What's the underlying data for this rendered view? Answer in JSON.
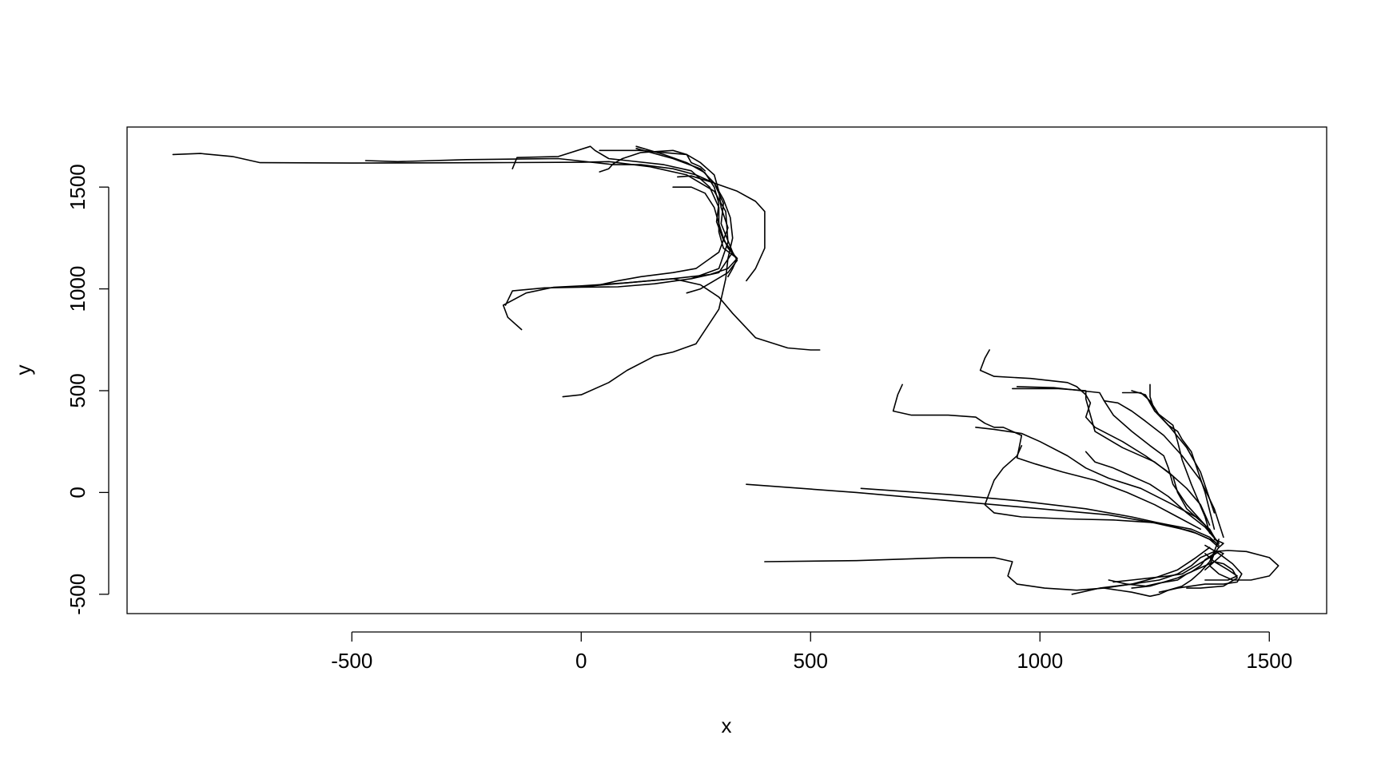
{
  "chart_data": {
    "type": "line",
    "title": "",
    "xlabel": "x",
    "ylabel": "y",
    "xlim": [
      -990,
      1625
    ],
    "ylim": [
      -595,
      1795
    ],
    "xticks": [
      -500,
      0,
      500,
      1000,
      1500
    ],
    "yticks": [
      -500,
      0,
      500,
      1000,
      1500
    ],
    "xtick_labels": [
      "-500",
      "0",
      "500",
      "1000",
      "1500"
    ],
    "ytick_labels": [
      "-500",
      "0",
      "500",
      "1000",
      "1500"
    ],
    "grid": false,
    "legend": "none",
    "line_color": "#000000",
    "series": [
      {
        "x": [
          -890,
          -830,
          -760,
          -700,
          -500,
          -200,
          0,
          60,
          150,
          230,
          290,
          315,
          320,
          300,
          240,
          160,
          80,
          0,
          -80,
          -150,
          -165
        ],
        "y": [
          1660,
          1665,
          1650,
          1620,
          1618,
          1620,
          1622,
          1625,
          1600,
          1560,
          1480,
          1380,
          1230,
          1100,
          1050,
          1025,
          1010,
          1008,
          1005,
          990,
          920
        ]
      },
      {
        "x": [
          -470,
          -400,
          -250,
          -50,
          70,
          130,
          200,
          250,
          290,
          310,
          305,
          330,
          300,
          240
        ],
        "y": [
          1630,
          1625,
          1635,
          1640,
          1610,
          1610,
          1590,
          1560,
          1520,
          1420,
          1320,
          1180,
          1080,
          1050
        ]
      },
      {
        "x": [
          -150,
          -140,
          -50,
          20,
          30,
          60,
          100,
          180,
          240,
          280,
          300,
          300,
          310,
          340,
          320,
          280,
          200,
          100,
          0,
          -60,
          -120,
          -170,
          -160,
          -130
        ],
        "y": [
          1590,
          1645,
          1650,
          1700,
          1680,
          1640,
          1630,
          1610,
          1580,
          1500,
          1400,
          1280,
          1200,
          1150,
          1100,
          1070,
          1050,
          1030,
          1015,
          1008,
          980,
          920,
          860,
          800
        ]
      },
      {
        "x": [
          120,
          180,
          230,
          270,
          290,
          300,
          295,
          310,
          330,
          340,
          320,
          260,
          230
        ],
        "y": [
          1700,
          1660,
          1620,
          1570,
          1500,
          1420,
          1330,
          1240,
          1180,
          1140,
          1080,
          1000,
          980
        ]
      },
      {
        "x": [
          40,
          60,
          70,
          90,
          130,
          200,
          230,
          240,
          260,
          270
        ],
        "y": [
          1575,
          1590,
          1615,
          1640,
          1670,
          1680,
          1660,
          1620,
          1600,
          1580
        ]
      },
      {
        "x": [
          40,
          80,
          130,
          180,
          230,
          260,
          290,
          300,
          305,
          320,
          300,
          250,
          200,
          130,
          80,
          40,
          0
        ],
        "y": [
          1680,
          1680,
          1680,
          1670,
          1660,
          1620,
          1560,
          1480,
          1400,
          1300,
          1180,
          1100,
          1080,
          1060,
          1040,
          1020,
          1010
        ]
      },
      {
        "x": [
          210,
          240,
          290,
          340,
          380,
          400,
          400,
          380,
          360
        ],
        "y": [
          1550,
          1555,
          1520,
          1480,
          1430,
          1380,
          1200,
          1100,
          1040
        ]
      },
      {
        "x": [
          200,
          240,
          270,
          290,
          300,
          310,
          320,
          340,
          330,
          320
        ],
        "y": [
          1500,
          1500,
          1470,
          1400,
          1320,
          1250,
          1200,
          1150,
          1100,
          1060
        ]
      },
      {
        "x": [
          120,
          200,
          260,
          290,
          310,
          325,
          330,
          320,
          315,
          300,
          250,
          200,
          160,
          100,
          60,
          0,
          -40
        ],
        "y": [
          1690,
          1640,
          1590,
          1520,
          1440,
          1350,
          1250,
          1150,
          1050,
          900,
          730,
          690,
          670,
          600,
          540,
          480,
          470
        ]
      },
      {
        "x": [
          0,
          100,
          200,
          260,
          300,
          330,
          380,
          450,
          500,
          520
        ],
        "y": [
          1010,
          1030,
          1050,
          1020,
          960,
          880,
          760,
          710,
          700,
          700
        ]
      },
      {
        "x": [
          890,
          880,
          870,
          900,
          980,
          1060,
          1080,
          1090,
          1100,
          1110,
          1100,
          1120,
          1180,
          1230,
          1280,
          1320,
          1350,
          1370
        ],
        "y": [
          700,
          660,
          600,
          570,
          560,
          540,
          520,
          500,
          480,
          440,
          370,
          320,
          250,
          180,
          100,
          20,
          -60,
          -160
        ]
      },
      {
        "x": [
          700,
          690,
          680,
          720,
          800,
          860,
          880,
          900,
          920,
          960,
          950,
          990,
          1050,
          1120,
          1190,
          1250,
          1300,
          1350
        ],
        "y": [
          530,
          480,
          400,
          380,
          380,
          370,
          340,
          320,
          320,
          280,
          170,
          140,
          100,
          60,
          0,
          -60,
          -120,
          -180
        ]
      },
      {
        "x": [
          940,
          1040,
          1100,
          1100,
          1110,
          1120,
          1180,
          1250,
          1290,
          1300,
          1320,
          1360,
          1380
        ],
        "y": [
          510,
          510,
          500,
          460,
          380,
          300,
          220,
          150,
          80,
          0,
          -80,
          -160,
          -220
        ]
      },
      {
        "x": [
          950,
          1030,
          1090,
          1130,
          1140,
          1160,
          1200,
          1240,
          1270,
          1280,
          1290,
          1320,
          1360,
          1390
        ],
        "y": [
          520,
          515,
          500,
          490,
          450,
          380,
          300,
          230,
          180,
          120,
          40,
          -60,
          -160,
          -250
        ]
      },
      {
        "x": [
          1240,
          1240,
          1250,
          1290,
          1300,
          1310,
          1330,
          1360,
          1370
        ],
        "y": [
          530,
          470,
          400,
          330,
          250,
          160,
          40,
          -120,
          -200
        ]
      },
      {
        "x": [
          1180,
          1220,
          1240,
          1260,
          1280,
          1300,
          1310,
          1330,
          1360,
          1380
        ],
        "y": [
          490,
          490,
          450,
          380,
          330,
          300,
          260,
          200,
          0,
          -180
        ]
      },
      {
        "x": [
          1100,
          1120,
          1160,
          1200,
          1240,
          1280,
          1320,
          1360,
          1390
        ],
        "y": [
          200,
          150,
          120,
          80,
          40,
          -20,
          -100,
          -170,
          -250
        ]
      },
      {
        "x": [
          1200,
          1230,
          1240,
          1250,
          1280,
          1320,
          1350,
          1380
        ],
        "y": [
          500,
          480,
          440,
          400,
          330,
          220,
          100,
          -100
        ]
      },
      {
        "x": [
          1140,
          1170,
          1200,
          1230,
          1270,
          1310,
          1350,
          1380,
          1400
        ],
        "y": [
          450,
          440,
          400,
          350,
          280,
          180,
          60,
          -80,
          -220
        ]
      },
      {
        "x": [
          360,
          600,
          800,
          950,
          1050,
          1150,
          1250,
          1330,
          1370,
          1390
        ],
        "y": [
          40,
          0,
          -40,
          -70,
          -90,
          -110,
          -150,
          -190,
          -230,
          -270
        ]
      },
      {
        "x": [
          610,
          800,
          950,
          1100,
          1200,
          1280,
          1340,
          1380
        ],
        "y": [
          20,
          -10,
          -40,
          -80,
          -120,
          -160,
          -200,
          -240
        ]
      },
      {
        "x": [
          860,
          900,
          960,
          1000,
          1060,
          1100,
          1150,
          1220,
          1290,
          1340,
          1370,
          1380
        ],
        "y": [
          320,
          310,
          290,
          250,
          180,
          120,
          70,
          20,
          -60,
          -120,
          -180,
          -220
        ]
      },
      {
        "x": [
          960,
          950,
          920,
          900,
          890,
          880,
          900,
          960,
          1060,
          1160,
          1260,
          1330,
          1370,
          1390
        ],
        "y": [
          230,
          180,
          120,
          60,
          0,
          -60,
          -100,
          -120,
          -130,
          -135,
          -150,
          -180,
          -220,
          -260
        ]
      },
      {
        "x": [
          400,
          600,
          800,
          900,
          940,
          930,
          950,
          1010,
          1080,
          1140,
          1200,
          1250,
          1300,
          1340,
          1370
        ],
        "y": [
          -340,
          -335,
          -320,
          -320,
          -340,
          -410,
          -450,
          -470,
          -480,
          -470,
          -450,
          -420,
          -380,
          -320,
          -270
        ]
      },
      {
        "x": [
          1070,
          1130,
          1200,
          1260,
          1300,
          1330,
          1350,
          1380,
          1410,
          1450,
          1500,
          1520,
          1500,
          1460,
          1420,
          1390,
          1370,
          1380
        ],
        "y": [
          -500,
          -470,
          -450,
          -430,
          -400,
          -360,
          -320,
          -290,
          -285,
          -290,
          -320,
          -360,
          -410,
          -430,
          -430,
          -400,
          -360,
          -300
        ]
      },
      {
        "x": [
          1140,
          1200,
          1240,
          1260,
          1280,
          1300,
          1330,
          1360,
          1400,
          1430,
          1440,
          1420,
          1390,
          1360
        ],
        "y": [
          -470,
          -490,
          -510,
          -500,
          -480,
          -470,
          -460,
          -450,
          -450,
          -440,
          -400,
          -350,
          -300,
          -260
        ]
      },
      {
        "x": [
          1150,
          1190,
          1230,
          1260,
          1300,
          1320,
          1340,
          1360,
          1380,
          1400,
          1420,
          1430,
          1400,
          1350,
          1320
        ],
        "y": [
          -430,
          -450,
          -460,
          -445,
          -430,
          -400,
          -380,
          -360,
          -340,
          -350,
          -380,
          -420,
          -460,
          -470,
          -470
        ]
      },
      {
        "x": [
          1160,
          1200,
          1240,
          1280,
          1310,
          1340,
          1370,
          1390,
          1400,
          1380,
          1360
        ],
        "y": [
          -440,
          -430,
          -420,
          -410,
          -400,
          -360,
          -320,
          -290,
          -300,
          -340,
          -380
        ]
      },
      {
        "x": [
          1200,
          1240,
          1270,
          1300,
          1330,
          1350,
          1360,
          1380,
          1390,
          1400,
          1380
        ],
        "y": [
          -470,
          -460,
          -440,
          -420,
          -390,
          -360,
          -330,
          -300,
          -270,
          -250,
          -230
        ]
      },
      {
        "x": [
          1260,
          1280,
          1310,
          1330,
          1350,
          1370,
          1380,
          1390
        ],
        "y": [
          -490,
          -480,
          -460,
          -430,
          -390,
          -340,
          -290,
          -230
        ]
      },
      {
        "x": [
          1360,
          1410,
          1430,
          1410,
          1380,
          1360
        ],
        "y": [
          -430,
          -430,
          -410,
          -380,
          -340,
          -300
        ]
      }
    ]
  }
}
